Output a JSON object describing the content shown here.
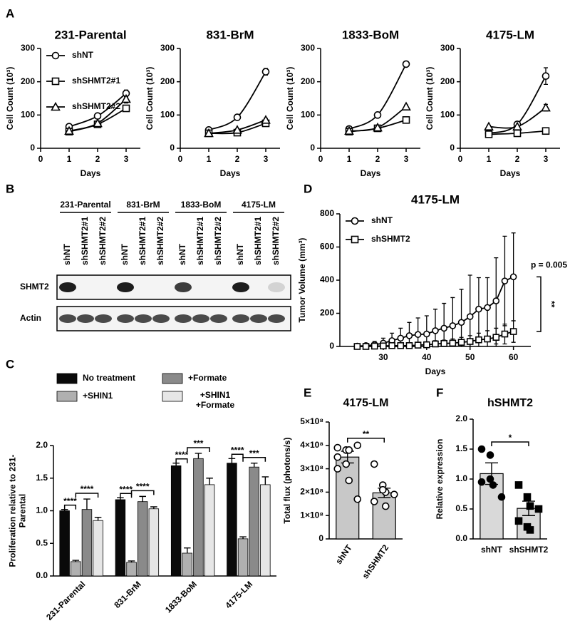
{
  "chart_data": [
    {
      "type": "line",
      "panel": "A",
      "title": "231-Parental",
      "xlabel": "Days",
      "ylabel": "Cell Count (10³)",
      "x": [
        1,
        2,
        3
      ],
      "xlim": [
        0,
        3.5
      ],
      "xticks": [
        0,
        1,
        2,
        3
      ],
      "ylim": [
        0,
        300
      ],
      "yticks": [
        0,
        100,
        200,
        300
      ],
      "smooth": true,
      "legend": "upper left",
      "series": [
        {
          "name": "shNT",
          "marker": "circle",
          "color": "#000000",
          "values": [
            65,
            97,
            165
          ],
          "errors": [
            8,
            5,
            10
          ]
        },
        {
          "name": "shSHMT2#1",
          "marker": "square",
          "color": "#000000",
          "values": [
            50,
            72,
            120
          ],
          "errors": [
            5,
            4,
            8
          ]
        },
        {
          "name": "shSHMT2#2",
          "marker": "triangle",
          "color": "#000000",
          "values": [
            52,
            75,
            148
          ],
          "errors": [
            4,
            4,
            12
          ]
        }
      ]
    },
    {
      "type": "line",
      "title": "831-BrM",
      "xlabel": "Days",
      "ylabel": "Cell Count (10³)",
      "x": [
        1,
        2,
        3
      ],
      "xlim": [
        0,
        3.5
      ],
      "xticks": [
        0,
        1,
        2,
        3
      ],
      "ylim": [
        0,
        300
      ],
      "yticks": [
        0,
        100,
        200,
        300
      ],
      "smooth": true,
      "series": [
        {
          "marker": "circle",
          "color": "#000000",
          "values": [
            55,
            93,
            230
          ],
          "errors": [
            6,
            4,
            10
          ]
        },
        {
          "marker": "square",
          "color": "#000000",
          "values": [
            45,
            47,
            75
          ],
          "errors": [
            3,
            3,
            6
          ]
        },
        {
          "marker": "triangle",
          "color": "#000000",
          "values": [
            45,
            55,
            85
          ],
          "errors": [
            3,
            3,
            5
          ]
        }
      ]
    },
    {
      "type": "line",
      "title": "1833-BoM",
      "xlabel": "Days",
      "ylabel": "Cell Count (10³)",
      "x": [
        1,
        2,
        3
      ],
      "xlim": [
        0,
        3.5
      ],
      "xticks": [
        0,
        1,
        2,
        3
      ],
      "ylim": [
        0,
        300
      ],
      "yticks": [
        0,
        100,
        200,
        300
      ],
      "smooth": true,
      "series": [
        {
          "marker": "circle",
          "color": "#000000",
          "values": [
            58,
            100,
            253
          ],
          "errors": [
            5,
            6,
            8
          ]
        },
        {
          "marker": "square",
          "color": "#000000",
          "values": [
            50,
            60,
            85
          ],
          "errors": [
            4,
            4,
            5
          ]
        },
        {
          "marker": "triangle",
          "color": "#000000",
          "values": [
            52,
            62,
            125
          ],
          "errors": [
            3,
            4,
            5
          ]
        }
      ]
    },
    {
      "type": "line",
      "title": "4175-LM",
      "xlabel": "Days",
      "ylabel": "Cell Count (10³)",
      "x": [
        1,
        2,
        3
      ],
      "xlim": [
        0,
        3.5
      ],
      "xticks": [
        0,
        1,
        2,
        3
      ],
      "ylim": [
        0,
        300
      ],
      "yticks": [
        0,
        100,
        200,
        300
      ],
      "smooth": true,
      "series": [
        {
          "marker": "circle",
          "color": "#000000",
          "values": [
            45,
            72,
            217
          ],
          "errors": [
            5,
            8,
            25
          ]
        },
        {
          "marker": "square",
          "color": "#000000",
          "values": [
            42,
            45,
            52
          ],
          "errors": [
            6,
            5,
            4
          ]
        },
        {
          "marker": "triangle",
          "color": "#000000",
          "values": [
            65,
            65,
            122
          ],
          "errors": [
            4,
            12,
            10
          ]
        }
      ]
    },
    {
      "type": "bar",
      "panel": "C",
      "ylabel": "Proliferation relative to 231-Parental",
      "categories": [
        "231-Parental",
        "831-BrM",
        "1833-BoM",
        "4175-LM"
      ],
      "xtick_rotation": -45,
      "ylim": [
        0,
        2
      ],
      "yticks": [
        {
          "value": 0,
          "label": "0.0"
        },
        0.5,
        {
          "value": 1,
          "label": "1.0"
        },
        1.5,
        {
          "value": 2,
          "label": "2.0"
        }
      ],
      "legend": "top",
      "series": [
        {
          "name": "No treatment",
          "color": "#0a0a0a",
          "values": [
            1.0,
            1.17,
            1.69,
            1.73
          ],
          "errors": [
            0.02,
            0.03,
            0.04,
            0.07
          ]
        },
        {
          "name": "+SHIN1",
          "color": "#b0b0b0",
          "values": [
            0.22,
            0.21,
            0.35,
            0.57
          ],
          "errors": [
            0.02,
            0.02,
            0.08,
            0.03
          ]
        },
        {
          "name": "+Formate",
          "color": "#8a8a8a",
          "values": [
            1.02,
            1.14,
            1.8,
            1.67
          ],
          "errors": [
            0.16,
            0.08,
            0.08,
            0.06
          ]
        },
        {
          "name": "+SHIN1 +Formate",
          "color": "#e6e6e6",
          "values": [
            0.85,
            1.03,
            1.4,
            1.4
          ],
          "errors": [
            0.05,
            0.03,
            0.1,
            0.12
          ]
        }
      ],
      "significance": [
        [
          "****",
          "****"
        ],
        [
          "****",
          "****"
        ],
        [
          "****",
          "***"
        ],
        [
          "****",
          "***"
        ]
      ]
    },
    {
      "type": "line",
      "panel": "D",
      "title": "4175-LM",
      "xlabel": "Days",
      "ylabel": "Tumor Volume (mm³)",
      "x": [
        24,
        26,
        28,
        30,
        32,
        34,
        36,
        38,
        40,
        42,
        44,
        46,
        48,
        50,
        52,
        54,
        56,
        58,
        60
      ],
      "xlim": [
        20,
        64
      ],
      "xticks": [
        30,
        40,
        50,
        60
      ],
      "ylim": [
        0,
        800
      ],
      "yticks": [
        0,
        200,
        400,
        600,
        800
      ],
      "legend": "upper left",
      "series": [
        {
          "name": "shNT",
          "marker": "circle",
          "color": "#000000",
          "values": [
            2,
            5,
            10,
            20,
            35,
            50,
            65,
            72,
            75,
            95,
            110,
            125,
            145,
            180,
            225,
            235,
            275,
            395,
            420
          ],
          "errors": [
            5,
            10,
            20,
            30,
            45,
            60,
            80,
            100,
            110,
            130,
            150,
            170,
            200,
            250,
            190,
            180,
            260,
            270,
            265
          ]
        },
        {
          "name": "shSHMT2",
          "marker": "square",
          "color": "#000000",
          "values": [
            0,
            0,
            2,
            3,
            5,
            5,
            5,
            8,
            10,
            15,
            18,
            20,
            25,
            30,
            40,
            45,
            55,
            75,
            90
          ],
          "errors": [
            2,
            2,
            5,
            8,
            10,
            10,
            12,
            15,
            18,
            20,
            20,
            25,
            30,
            35,
            40,
            50,
            55,
            60,
            65
          ]
        }
      ],
      "annotation": "p = 0.005",
      "significance": "**"
    },
    {
      "type": "bar",
      "panel": "E",
      "title": "4175-LM",
      "ylabel": "Total flux (photons/s)",
      "categories": [
        "shNT",
        "shSHMT2"
      ],
      "xtick_rotation": -55,
      "color": "#c8c8c8",
      "ylim": [
        0,
        500000000
      ],
      "yticks": [
        0,
        {
          "value": 100000000,
          "label": "1×10⁸"
        },
        {
          "value": 200000000,
          "label": "2×10⁸"
        },
        {
          "value": 300000000,
          "label": "3×10⁸"
        },
        {
          "value": 400000000,
          "label": "4×10⁸"
        },
        {
          "value": 500000000,
          "label": "5×10⁸"
        }
      ],
      "values": [
        350000000,
        197000000
      ],
      "errors": [
        25000000,
        20000000
      ],
      "points": [
        [
          300000000,
          380000000,
          380000000,
          400000000,
          350000000,
          320000000,
          250000000,
          170000000,
          390000000
        ],
        [
          320000000,
          230000000,
          200000000,
          190000000,
          160000000,
          210000000,
          140000000
        ]
      ],
      "point_markers": [
        "circle-open",
        "circle-open"
      ],
      "significance": "**"
    },
    {
      "type": "bar",
      "panel": "F",
      "title": "hSHMT2",
      "ylabel": "Relative expression",
      "categories": [
        "shNT",
        "shSHMT2"
      ],
      "color": "#d9d9d9",
      "ylim": [
        0,
        2
      ],
      "yticks": [
        {
          "value": 0,
          "label": "0.0"
        },
        0.5,
        {
          "value": 1,
          "label": "1.0"
        },
        1.5,
        {
          "value": 2,
          "label": "2.0"
        }
      ],
      "values": [
        1.09,
        0.51
      ],
      "errors": [
        0.18,
        0.12
      ],
      "points": [
        [
          1.5,
          1.4,
          0.9,
          0.7,
          0.95,
          1.0
        ],
        [
          0.9,
          0.7,
          0.55,
          0.5,
          0.3,
          0.2,
          0.15
        ]
      ],
      "point_markers": [
        "circle",
        "square"
      ],
      "significance": "*"
    }
  ],
  "blot": {
    "panel": "B",
    "cell_lines": [
      "231-Parental",
      "831-BrM",
      "1833-BoM",
      "4175-LM"
    ],
    "lanes": [
      "shNT",
      "shSHMT2#1",
      "shSHMT2#2"
    ],
    "proteins": [
      "SHMT2",
      "Actin"
    ]
  }
}
